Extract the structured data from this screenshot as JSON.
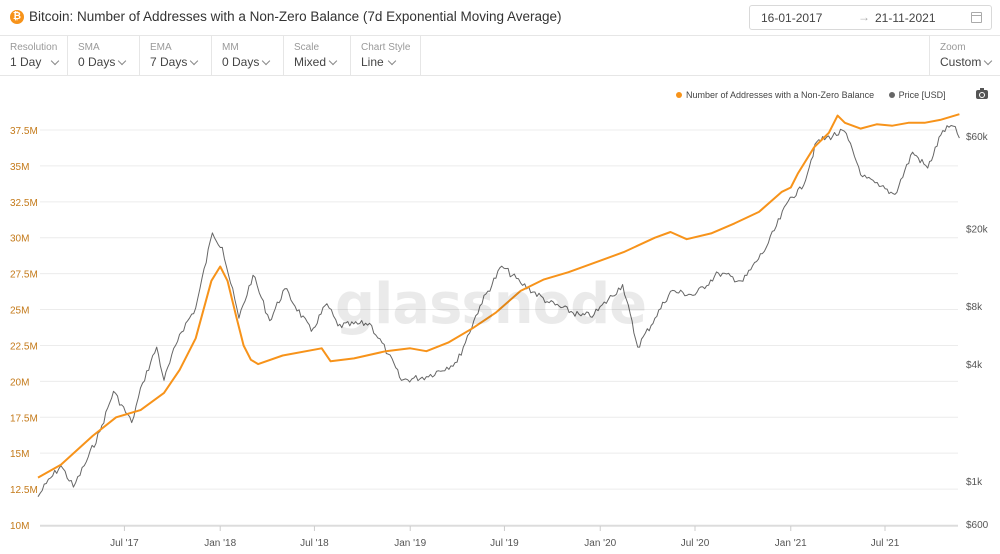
{
  "header": {
    "title": "Bitcoin: Number of Addresses with a Non-Zero Balance (7d Exponential Moving Average)",
    "icon": "bitcoin-icon",
    "date_start": "16-01-2017",
    "date_arrow": "→",
    "date_end": "21-11-2021"
  },
  "toolbar": [
    {
      "label": "Resolution",
      "value": "1 Day"
    },
    {
      "label": "SMA",
      "value": "0 Days"
    },
    {
      "label": "EMA",
      "value": "7 Days"
    },
    {
      "label": "MM",
      "value": "0 Days"
    },
    {
      "label": "Scale",
      "value": "Mixed"
    },
    {
      "label": "Chart Style",
      "value": "Line"
    }
  ],
  "zoom": {
    "label": "Zoom",
    "value": "Custom"
  },
  "watermark": "glassnode",
  "colors": {
    "addresses": "#f7931a",
    "price": "#666666",
    "grid": "#ececec",
    "left_axis": "#c47a1a"
  },
  "chart_data": {
    "type": "line",
    "legend": {
      "placement": "top-right"
    },
    "grid": true,
    "x_ticks": [
      "Jul '17",
      "Jan '18",
      "Jul '18",
      "Jan '19",
      "Jul '19",
      "Jan '20",
      "Jul '20",
      "Jan '21",
      "Jul '21"
    ],
    "y_left": {
      "ticks": [
        "10M",
        "12.5M",
        "15M",
        "17.5M",
        "20M",
        "22.5M",
        "25M",
        "27.5M",
        "30M",
        "32.5M",
        "35M",
        "37.5M"
      ],
      "range": [
        10000000,
        40000000
      ],
      "scale": "linear"
    },
    "y_right": {
      "ticks": [
        "$600",
        "$1k",
        "$4k",
        "$8k",
        "$20k",
        "$60k"
      ],
      "range": [
        600,
        100000
      ],
      "scale": "log"
    },
    "series": [
      {
        "name": "Number of Addresses with a Non-Zero Balance",
        "axis": "left",
        "points": [
          [
            "2017-01-16",
            13.3
          ],
          [
            "2017-03-01",
            14.2
          ],
          [
            "2017-05-01",
            16.2
          ],
          [
            "2017-06-15",
            17.5
          ],
          [
            "2017-08-01",
            18.0
          ],
          [
            "2017-09-15",
            19.2
          ],
          [
            "2017-10-15",
            20.8
          ],
          [
            "2017-11-15",
            23.0
          ],
          [
            "2017-12-15",
            27.0
          ],
          [
            "2018-01-01",
            28.0
          ],
          [
            "2018-01-15",
            27.0
          ],
          [
            "2018-02-01",
            24.5
          ],
          [
            "2018-02-15",
            22.5
          ],
          [
            "2018-03-01",
            21.5
          ],
          [
            "2018-03-15",
            21.2
          ],
          [
            "2018-05-01",
            21.8
          ],
          [
            "2018-07-15",
            22.3
          ],
          [
            "2018-08-01",
            21.4
          ],
          [
            "2018-09-15",
            21.6
          ],
          [
            "2018-11-15",
            22.1
          ],
          [
            "2019-01-01",
            22.3
          ],
          [
            "2019-02-01",
            22.1
          ],
          [
            "2019-03-15",
            22.7
          ],
          [
            "2019-05-01",
            23.7
          ],
          [
            "2019-06-15",
            24.8
          ],
          [
            "2019-08-01",
            26.3
          ],
          [
            "2019-09-15",
            27.1
          ],
          [
            "2019-11-01",
            27.6
          ],
          [
            "2020-01-01",
            28.4
          ],
          [
            "2020-02-15",
            29.0
          ],
          [
            "2020-04-15",
            30.0
          ],
          [
            "2020-05-15",
            30.4
          ],
          [
            "2020-06-15",
            29.9
          ],
          [
            "2020-08-01",
            30.3
          ],
          [
            "2020-09-15",
            31.0
          ],
          [
            "2020-11-01",
            31.8
          ],
          [
            "2020-12-15",
            33.2
          ],
          [
            "2021-01-01",
            33.5
          ],
          [
            "2021-01-15",
            34.5
          ],
          [
            "2021-02-15",
            36.3
          ],
          [
            "2021-03-15",
            37.3
          ],
          [
            "2021-04-01",
            38.5
          ],
          [
            "2021-04-15",
            38.0
          ],
          [
            "2021-05-15",
            37.6
          ],
          [
            "2021-06-15",
            37.9
          ],
          [
            "2021-07-15",
            37.8
          ],
          [
            "2021-08-15",
            38.0
          ],
          [
            "2021-09-15",
            38.0
          ],
          [
            "2021-10-15",
            38.2
          ],
          [
            "2021-11-21",
            38.6
          ]
        ]
      },
      {
        "name": "Price [USD]",
        "axis": "right",
        "points": [
          [
            "2017-01-16",
            830
          ],
          [
            "2017-02-01",
            970
          ],
          [
            "2017-03-01",
            1200
          ],
          [
            "2017-03-25",
            930
          ],
          [
            "2017-04-15",
            1200
          ],
          [
            "2017-05-15",
            1800
          ],
          [
            "2017-06-10",
            2900
          ],
          [
            "2017-07-15",
            2000
          ],
          [
            "2017-08-05",
            3200
          ],
          [
            "2017-09-01",
            4900
          ],
          [
            "2017-09-15",
            3300
          ],
          [
            "2017-10-15",
            5700
          ],
          [
            "2017-11-15",
            7800
          ],
          [
            "2017-12-17",
            19000
          ],
          [
            "2018-01-05",
            16000
          ],
          [
            "2018-02-06",
            6900
          ],
          [
            "2018-03-05",
            11500
          ],
          [
            "2018-04-06",
            6700
          ],
          [
            "2018-05-05",
            9800
          ],
          [
            "2018-06-25",
            5900
          ],
          [
            "2018-07-25",
            8200
          ],
          [
            "2018-08-15",
            6300
          ],
          [
            "2018-10-15",
            6500
          ],
          [
            "2018-11-20",
            4500
          ],
          [
            "2018-12-15",
            3300
          ],
          [
            "2019-02-01",
            3450
          ],
          [
            "2019-04-01",
            4100
          ],
          [
            "2019-05-15",
            8000
          ],
          [
            "2019-06-26",
            12800
          ],
          [
            "2019-08-01",
            10500
          ],
          [
            "2019-09-25",
            8300
          ],
          [
            "2019-11-25",
            7100
          ],
          [
            "2019-12-20",
            7200
          ],
          [
            "2020-02-13",
            10300
          ],
          [
            "2020-03-13",
            4900
          ],
          [
            "2020-04-15",
            6900
          ],
          [
            "2020-05-15",
            9500
          ],
          [
            "2020-07-01",
            9100
          ],
          [
            "2020-08-15",
            11800
          ],
          [
            "2020-10-01",
            10700
          ],
          [
            "2020-11-15",
            16000
          ],
          [
            "2020-12-31",
            29000
          ],
          [
            "2021-01-22",
            32000
          ],
          [
            "2021-02-20",
            56000
          ],
          [
            "2021-04-14",
            63500
          ],
          [
            "2021-05-19",
            37000
          ],
          [
            "2021-06-20",
            33000
          ],
          [
            "2021-07-20",
            30000
          ],
          [
            "2021-08-23",
            49500
          ],
          [
            "2021-09-21",
            41000
          ],
          [
            "2021-10-20",
            64000
          ],
          [
            "2021-11-09",
            67500
          ],
          [
            "2021-11-21",
            58500
          ]
        ]
      }
    ]
  }
}
